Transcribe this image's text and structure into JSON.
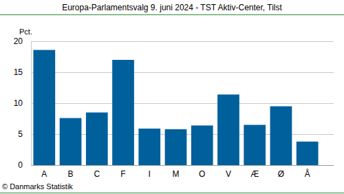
{
  "chart_data": {
    "type": "bar",
    "title": "Europa-Parlamentsvalg 9. juni 2024 - TST Aktiv-Center, Tilst",
    "y_label": "Pct.",
    "source": "© Danmarks Statistik",
    "categories": [
      "A",
      "B",
      "C",
      "F",
      "I",
      "M",
      "O",
      "V",
      "Æ",
      "Ø",
      "Å"
    ],
    "values": [
      18.6,
      7.6,
      8.5,
      17.0,
      5.9,
      5.8,
      6.4,
      11.4,
      6.5,
      9.5,
      3.8
    ],
    "color": "#00609c",
    "ylim": [
      0,
      20
    ],
    "yticks": [
      0,
      5,
      10,
      15,
      20
    ],
    "grid": true
  }
}
